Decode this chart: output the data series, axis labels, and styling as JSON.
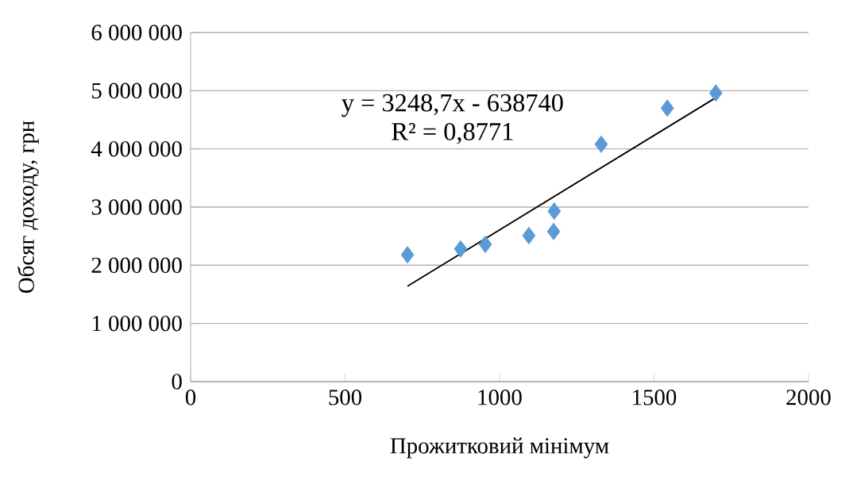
{
  "chart_data": {
    "type": "scatter",
    "xlabel": "Прожитковий мінімум",
    "ylabel": "Обсяг доходу, грн",
    "series": [
      {
        "color": "#5b9bd5",
        "marker": "diamond",
        "x": [
          702,
          874,
          954,
          1095,
          1175,
          1177,
          1329,
          1543,
          1700
        ],
        "values": [
          2180000,
          2280000,
          2360000,
          2510000,
          2580000,
          2930000,
          4080000,
          4700000,
          4960000
        ]
      },
      {
        "type": "line",
        "color": "#000000",
        "marker": "none",
        "x": [
          702,
          1700
        ],
        "values": [
          1640000,
          4880000
        ]
      }
    ],
    "annotations": [
      "y = 3248,7x - 638740",
      "R² = 0,8771"
    ],
    "xlim": [
      0,
      2000
    ],
    "xticks": [
      0,
      500,
      1000,
      1500,
      2000
    ],
    "ylim": [
      0,
      6000000
    ],
    "yticks": [
      {
        "value": 0,
        "label": "0"
      },
      {
        "value": 1000000,
        "label": "1 000 000"
      },
      {
        "value": 2000000,
        "label": "2 000 000"
      },
      {
        "value": 3000000,
        "label": "3 000 000"
      },
      {
        "value": 4000000,
        "label": "4 000 000"
      },
      {
        "value": 5000000,
        "label": "5 000 000"
      },
      {
        "value": 6000000,
        "label": "6 000 000"
      }
    ],
    "grid": "y"
  }
}
